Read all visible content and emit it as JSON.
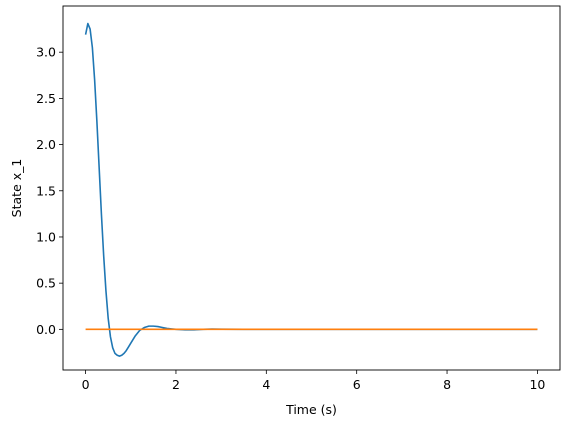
{
  "chart_data": {
    "type": "line",
    "title": "",
    "xlabel": "Time (s)",
    "ylabel": "State x_1",
    "xlim": [
      -0.5,
      10.5
    ],
    "ylim": [
      -0.44,
      3.5
    ],
    "xticks": [
      0,
      2,
      4,
      6,
      8,
      10
    ],
    "yticks": [
      0.0,
      0.5,
      1.0,
      1.5,
      2.0,
      2.5,
      3.0
    ],
    "xtick_labels": [
      "0",
      "2",
      "4",
      "6",
      "8",
      "10"
    ],
    "ytick_labels": [
      "0.0",
      "0.5",
      "1.0",
      "1.5",
      "2.0",
      "2.5",
      "3.0"
    ],
    "grid": false,
    "legend": "none",
    "series": [
      {
        "color": "#1f77b4",
        "x": [
          0.0,
          0.05,
          0.1,
          0.15,
          0.2,
          0.25,
          0.3,
          0.35,
          0.4,
          0.45,
          0.5,
          0.55,
          0.6,
          0.65,
          0.7,
          0.75,
          0.8,
          0.85,
          0.9,
          0.95,
          1.0,
          1.1,
          1.2,
          1.3,
          1.4,
          1.5,
          1.6,
          1.7,
          1.8,
          1.9,
          2.0,
          2.2,
          2.4,
          2.6,
          2.8,
          3.0,
          3.5,
          4.0,
          5.0,
          6.0,
          7.0,
          8.0,
          9.0,
          10.0
        ],
        "y": [
          3.19,
          3.31,
          3.25,
          3.05,
          2.7,
          2.25,
          1.75,
          1.25,
          0.8,
          0.42,
          0.12,
          -0.08,
          -0.2,
          -0.26,
          -0.28,
          -0.29,
          -0.28,
          -0.26,
          -0.23,
          -0.19,
          -0.15,
          -0.07,
          -0.01,
          0.02,
          0.035,
          0.035,
          0.03,
          0.02,
          0.01,
          0.005,
          0.0,
          -0.005,
          -0.005,
          0.0,
          0.003,
          0.002,
          0.0,
          0.0,
          0.0,
          0.0,
          0.0,
          0.0,
          0.0,
          0.0
        ]
      },
      {
        "color": "#ff7f0e",
        "x": [
          0.0,
          10.0
        ],
        "y": [
          0.0,
          0.0
        ]
      }
    ]
  }
}
